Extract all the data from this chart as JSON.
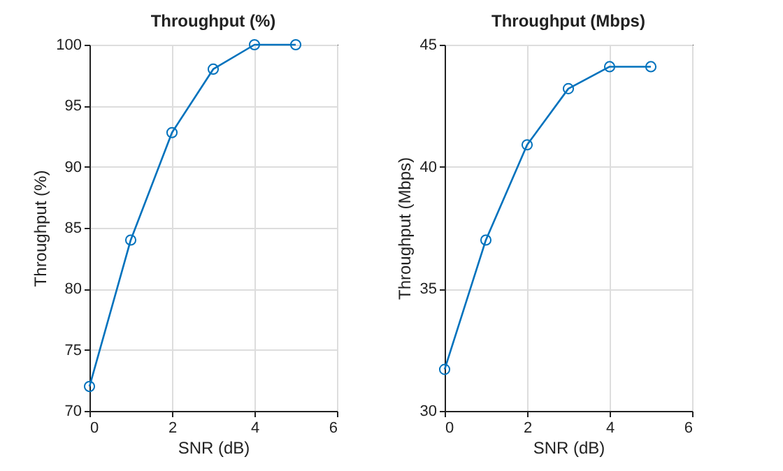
{
  "chart_data": [
    {
      "type": "line",
      "title": "Throughput (%)",
      "xlabel": "SNR (dB)",
      "ylabel": "Throughput (%)",
      "x": [
        0,
        1,
        2,
        3,
        4,
        5
      ],
      "series": [
        {
          "color": "#0072bd",
          "values": [
            72,
            84,
            92.8,
            98,
            100,
            100
          ]
        }
      ],
      "xlim": [
        0,
        6
      ],
      "xticks": [
        0,
        2,
        4,
        6
      ],
      "ylim": [
        70,
        100
      ],
      "yticks": [
        70,
        75,
        80,
        85,
        90,
        95,
        100
      ],
      "grid": true,
      "marker": "circle",
      "line_style": "solid"
    },
    {
      "type": "line",
      "title": "Throughput (Mbps)",
      "xlabel": "SNR (dB)",
      "ylabel": "Throughput (Mbps)",
      "x": [
        0,
        1,
        2,
        3,
        4,
        5
      ],
      "series": [
        {
          "color": "#0072bd",
          "values": [
            31.7,
            37,
            40.9,
            43.2,
            44.1,
            44.1
          ]
        }
      ],
      "xlim": [
        0,
        6
      ],
      "xticks": [
        0,
        2,
        4,
        6
      ],
      "ylim": [
        30,
        45
      ],
      "yticks": [
        30,
        35,
        40,
        45
      ],
      "grid": true,
      "marker": "circle",
      "line_style": "solid"
    }
  ]
}
